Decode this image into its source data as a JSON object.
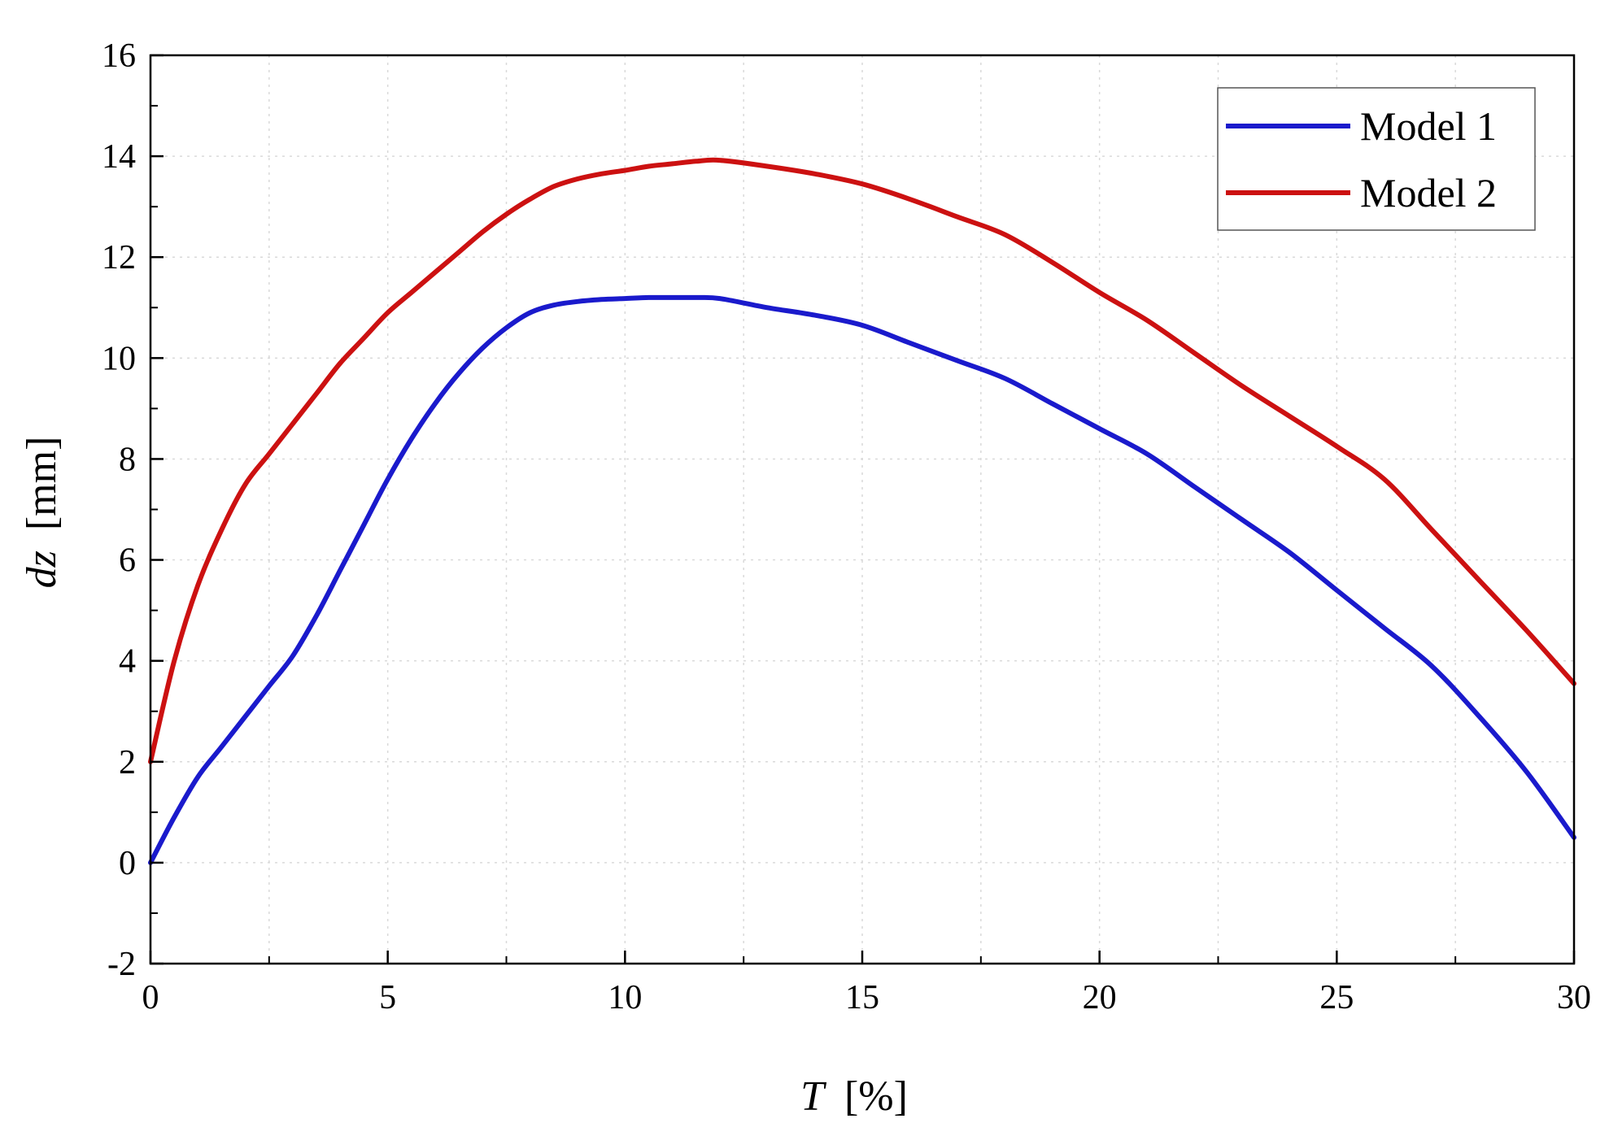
{
  "chart_data": {
    "type": "line",
    "xlabel": {
      "symbol": "T",
      "unit": "[%]"
    },
    "ylabel": {
      "symbol": "dz",
      "unit": "[mm]"
    },
    "xlim": [
      0,
      30
    ],
    "ylim": [
      -2,
      16
    ],
    "xticks": [
      0,
      5,
      10,
      15,
      20,
      25,
      30
    ],
    "yticks": [
      -2,
      0,
      2,
      4,
      6,
      8,
      10,
      12,
      14,
      16
    ],
    "grid": true,
    "legend_position": "top-right",
    "series": [
      {
        "name": "Model 1",
        "color": "#1a1acc",
        "x": [
          0,
          0.5,
          1,
          1.5,
          2,
          2.5,
          3,
          3.5,
          4,
          4.5,
          5,
          5.5,
          6,
          6.5,
          7,
          7.5,
          8,
          8.5,
          9,
          9.5,
          10,
          10.5,
          11,
          11.5,
          12,
          13,
          14,
          15,
          16,
          17,
          18,
          19,
          20,
          21,
          22,
          23,
          24,
          25,
          26,
          27,
          28,
          29,
          30
        ],
        "y": [
          0,
          0.9,
          1.7,
          2.3,
          2.9,
          3.5,
          4.1,
          4.9,
          5.8,
          6.7,
          7.6,
          8.4,
          9.1,
          9.7,
          10.2,
          10.6,
          10.9,
          11.05,
          11.12,
          11.16,
          11.18,
          11.2,
          11.2,
          11.2,
          11.18,
          11.0,
          10.85,
          10.65,
          10.3,
          9.95,
          9.6,
          9.1,
          8.6,
          8.1,
          7.45,
          6.8,
          6.15,
          5.4,
          4.65,
          3.9,
          2.9,
          1.8,
          0.5
        ]
      },
      {
        "name": "Model 2",
        "color": "#cc1111",
        "x": [
          0,
          0.5,
          1,
          1.5,
          2,
          2.5,
          3,
          3.5,
          4,
          4.5,
          5,
          5.5,
          6,
          6.5,
          7,
          7.5,
          8,
          8.5,
          9,
          9.5,
          10,
          10.5,
          11,
          11.5,
          12,
          13,
          14,
          15,
          16,
          17,
          18,
          19,
          20,
          21,
          22,
          23,
          24,
          25,
          26,
          27,
          28,
          29,
          30
        ],
        "y": [
          2.0,
          4.0,
          5.5,
          6.6,
          7.5,
          8.1,
          8.7,
          9.3,
          9.9,
          10.4,
          10.9,
          11.3,
          11.7,
          12.1,
          12.5,
          12.85,
          13.15,
          13.4,
          13.55,
          13.65,
          13.72,
          13.8,
          13.85,
          13.9,
          13.92,
          13.8,
          13.65,
          13.45,
          13.15,
          12.8,
          12.45,
          11.9,
          11.3,
          10.75,
          10.1,
          9.45,
          8.85,
          8.25,
          7.6,
          6.6,
          5.6,
          4.6,
          3.55
        ]
      }
    ]
  }
}
